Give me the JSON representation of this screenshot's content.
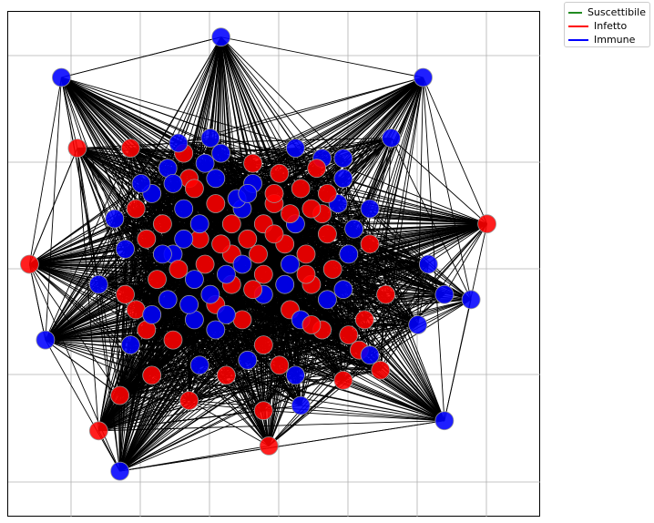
{
  "chart_data": {
    "type": "network",
    "title": "",
    "xlabel": "",
    "ylabel": "",
    "grid": true,
    "legend": {
      "placement": "outside-top-right",
      "entries": [
        {
          "label": "Suscettibile",
          "color": "#228b22"
        },
        {
          "label": "Infetto",
          "color": "#ff0000"
        },
        {
          "label": "Immune",
          "color": "#0000ff"
        }
      ]
    },
    "colors": {
      "edge": "#000000",
      "grid": "#b0b0b0",
      "infected": "#ff0000",
      "immune": "#0000ff"
    },
    "counts": {
      "suscettibile": 0,
      "infetto": 62,
      "immune": 68
    },
    "nodes": [
      {
        "x": 0.4,
        "y": 0.95,
        "state": "Immune"
      },
      {
        "x": 0.78,
        "y": 0.87,
        "state": "Immune"
      },
      {
        "x": 0.1,
        "y": 0.87,
        "state": "Immune"
      },
      {
        "x": 0.72,
        "y": 0.75,
        "state": "Immune"
      },
      {
        "x": 0.13,
        "y": 0.73,
        "state": "Infetto"
      },
      {
        "x": 0.23,
        "y": 0.73,
        "state": "Infetto"
      },
      {
        "x": 0.54,
        "y": 0.73,
        "state": "Immune"
      },
      {
        "x": 0.59,
        "y": 0.71,
        "state": "Immune"
      },
      {
        "x": 0.9,
        "y": 0.58,
        "state": "Infetto"
      },
      {
        "x": 0.04,
        "y": 0.5,
        "state": "Infetto"
      },
      {
        "x": 0.79,
        "y": 0.5,
        "state": "Immune"
      },
      {
        "x": 0.87,
        "y": 0.43,
        "state": "Immune"
      },
      {
        "x": 0.07,
        "y": 0.35,
        "state": "Immune"
      },
      {
        "x": 0.82,
        "y": 0.44,
        "state": "Immune"
      },
      {
        "x": 0.77,
        "y": 0.38,
        "state": "Immune"
      },
      {
        "x": 0.71,
        "y": 0.44,
        "state": "Infetto"
      },
      {
        "x": 0.36,
        "y": 0.3,
        "state": "Immune"
      },
      {
        "x": 0.7,
        "y": 0.29,
        "state": "Infetto"
      },
      {
        "x": 0.17,
        "y": 0.17,
        "state": "Infetto"
      },
      {
        "x": 0.82,
        "y": 0.19,
        "state": "Immune"
      },
      {
        "x": 0.48,
        "y": 0.21,
        "state": "Infetto"
      },
      {
        "x": 0.54,
        "y": 0.28,
        "state": "Immune"
      },
      {
        "x": 0.63,
        "y": 0.27,
        "state": "Infetto"
      },
      {
        "x": 0.34,
        "y": 0.23,
        "state": "Infetto"
      },
      {
        "x": 0.55,
        "y": 0.22,
        "state": "Immune"
      },
      {
        "x": 0.21,
        "y": 0.09,
        "state": "Immune"
      },
      {
        "x": 0.49,
        "y": 0.14,
        "state": "Infetto"
      },
      {
        "x": 0.21,
        "y": 0.24,
        "state": "Infetto"
      },
      {
        "x": 0.41,
        "y": 0.28,
        "state": "Infetto"
      },
      {
        "x": 0.45,
        "y": 0.31,
        "state": "Immune"
      },
      {
        "x": 0.27,
        "y": 0.28,
        "state": "Infetto"
      },
      {
        "x": 0.23,
        "y": 0.34,
        "state": "Immune"
      },
      {
        "x": 0.35,
        "y": 0.39,
        "state": "Immune"
      },
      {
        "x": 0.44,
        "y": 0.39,
        "state": "Infetto"
      },
      {
        "x": 0.53,
        "y": 0.41,
        "state": "Infetto"
      },
      {
        "x": 0.6,
        "y": 0.43,
        "state": "Immune"
      },
      {
        "x": 0.66,
        "y": 0.33,
        "state": "Infetto"
      },
      {
        "x": 0.64,
        "y": 0.36,
        "state": "Infetto"
      },
      {
        "x": 0.59,
        "y": 0.37,
        "state": "Infetto"
      },
      {
        "x": 0.55,
        "y": 0.39,
        "state": "Immune"
      },
      {
        "x": 0.26,
        "y": 0.37,
        "state": "Infetto"
      },
      {
        "x": 0.31,
        "y": 0.35,
        "state": "Infetto"
      },
      {
        "x": 0.39,
        "y": 0.37,
        "state": "Immune"
      },
      {
        "x": 0.48,
        "y": 0.34,
        "state": "Infetto"
      },
      {
        "x": 0.51,
        "y": 0.3,
        "state": "Infetto"
      },
      {
        "x": 0.39,
        "y": 0.42,
        "state": "Infetto"
      },
      {
        "x": 0.3,
        "y": 0.43,
        "state": "Immune"
      },
      {
        "x": 0.24,
        "y": 0.41,
        "state": "Infetto"
      },
      {
        "x": 0.22,
        "y": 0.44,
        "state": "Infetto"
      },
      {
        "x": 0.57,
        "y": 0.46,
        "state": "Infetto"
      },
      {
        "x": 0.63,
        "y": 0.45,
        "state": "Immune"
      },
      {
        "x": 0.67,
        "y": 0.39,
        "state": "Infetto"
      },
      {
        "x": 0.68,
        "y": 0.32,
        "state": "Immune"
      },
      {
        "x": 0.48,
        "y": 0.44,
        "state": "Immune"
      },
      {
        "x": 0.42,
        "y": 0.46,
        "state": "Infetto"
      },
      {
        "x": 0.35,
        "y": 0.47,
        "state": "Immune"
      },
      {
        "x": 0.28,
        "y": 0.47,
        "state": "Infetto"
      },
      {
        "x": 0.17,
        "y": 0.46,
        "state": "Immune"
      },
      {
        "x": 0.22,
        "y": 0.53,
        "state": "Immune"
      },
      {
        "x": 0.26,
        "y": 0.55,
        "state": "Infetto"
      },
      {
        "x": 0.31,
        "y": 0.52,
        "state": "Immune"
      },
      {
        "x": 0.36,
        "y": 0.55,
        "state": "Infetto"
      },
      {
        "x": 0.42,
        "y": 0.52,
        "state": "Infetto"
      },
      {
        "x": 0.47,
        "y": 0.52,
        "state": "Infetto"
      },
      {
        "x": 0.52,
        "y": 0.54,
        "state": "Infetto"
      },
      {
        "x": 0.56,
        "y": 0.52,
        "state": "Infetto"
      },
      {
        "x": 0.6,
        "y": 0.56,
        "state": "Infetto"
      },
      {
        "x": 0.64,
        "y": 0.52,
        "state": "Immune"
      },
      {
        "x": 0.36,
        "y": 0.58,
        "state": "Immune"
      },
      {
        "x": 0.42,
        "y": 0.58,
        "state": "Infetto"
      },
      {
        "x": 0.48,
        "y": 0.58,
        "state": "Infetto"
      },
      {
        "x": 0.54,
        "y": 0.58,
        "state": "Immune"
      },
      {
        "x": 0.59,
        "y": 0.6,
        "state": "Infetto"
      },
      {
        "x": 0.62,
        "y": 0.62,
        "state": "Immune"
      },
      {
        "x": 0.44,
        "y": 0.61,
        "state": "Immune"
      },
      {
        "x": 0.39,
        "y": 0.62,
        "state": "Infetto"
      },
      {
        "x": 0.33,
        "y": 0.61,
        "state": "Immune"
      },
      {
        "x": 0.29,
        "y": 0.58,
        "state": "Infetto"
      },
      {
        "x": 0.27,
        "y": 0.64,
        "state": "Immune"
      },
      {
        "x": 0.24,
        "y": 0.61,
        "state": "Infetto"
      },
      {
        "x": 0.2,
        "y": 0.59,
        "state": "Immune"
      },
      {
        "x": 0.3,
        "y": 0.69,
        "state": "Immune"
      },
      {
        "x": 0.34,
        "y": 0.67,
        "state": "Infetto"
      },
      {
        "x": 0.39,
        "y": 0.67,
        "state": "Immune"
      },
      {
        "x": 0.46,
        "y": 0.66,
        "state": "Immune"
      },
      {
        "x": 0.5,
        "y": 0.62,
        "state": "Infetto"
      },
      {
        "x": 0.55,
        "y": 0.65,
        "state": "Infetto"
      },
      {
        "x": 0.6,
        "y": 0.64,
        "state": "Infetto"
      },
      {
        "x": 0.63,
        "y": 0.67,
        "state": "Immune"
      },
      {
        "x": 0.33,
        "y": 0.72,
        "state": "Infetto"
      },
      {
        "x": 0.4,
        "y": 0.72,
        "state": "Immune"
      },
      {
        "x": 0.46,
        "y": 0.7,
        "state": "Infetto"
      },
      {
        "x": 0.51,
        "y": 0.68,
        "state": "Infetto"
      },
      {
        "x": 0.38,
        "y": 0.75,
        "state": "Immune"
      },
      {
        "x": 0.43,
        "y": 0.63,
        "state": "Immune"
      },
      {
        "x": 0.57,
        "y": 0.61,
        "state": "Infetto"
      },
      {
        "x": 0.32,
        "y": 0.74,
        "state": "Immune"
      },
      {
        "x": 0.35,
        "y": 0.65,
        "state": "Infetto"
      },
      {
        "x": 0.31,
        "y": 0.66,
        "state": "Immune"
      },
      {
        "x": 0.45,
        "y": 0.55,
        "state": "Infetto"
      },
      {
        "x": 0.5,
        "y": 0.56,
        "state": "Infetto"
      },
      {
        "x": 0.53,
        "y": 0.5,
        "state": "Immune"
      },
      {
        "x": 0.48,
        "y": 0.48,
        "state": "Infetto"
      },
      {
        "x": 0.44,
        "y": 0.5,
        "state": "Immune"
      },
      {
        "x": 0.4,
        "y": 0.54,
        "state": "Infetto"
      },
      {
        "x": 0.37,
        "y": 0.5,
        "state": "Infetto"
      },
      {
        "x": 0.33,
        "y": 0.55,
        "state": "Immune"
      },
      {
        "x": 0.41,
        "y": 0.48,
        "state": "Immune"
      },
      {
        "x": 0.56,
        "y": 0.48,
        "state": "Infetto"
      },
      {
        "x": 0.52,
        "y": 0.46,
        "state": "Immune"
      },
      {
        "x": 0.46,
        "y": 0.45,
        "state": "Infetto"
      },
      {
        "x": 0.38,
        "y": 0.44,
        "state": "Immune"
      },
      {
        "x": 0.32,
        "y": 0.49,
        "state": "Infetto"
      },
      {
        "x": 0.29,
        "y": 0.52,
        "state": "Immune"
      },
      {
        "x": 0.5,
        "y": 0.64,
        "state": "Infetto"
      },
      {
        "x": 0.53,
        "y": 0.6,
        "state": "Infetto"
      },
      {
        "x": 0.45,
        "y": 0.64,
        "state": "Immune"
      },
      {
        "x": 0.41,
        "y": 0.4,
        "state": "Immune"
      },
      {
        "x": 0.57,
        "y": 0.38,
        "state": "Infetto"
      },
      {
        "x": 0.61,
        "y": 0.49,
        "state": "Infetto"
      },
      {
        "x": 0.65,
        "y": 0.57,
        "state": "Immune"
      },
      {
        "x": 0.68,
        "y": 0.61,
        "state": "Immune"
      },
      {
        "x": 0.68,
        "y": 0.54,
        "state": "Infetto"
      },
      {
        "x": 0.27,
        "y": 0.4,
        "state": "Immune"
      },
      {
        "x": 0.34,
        "y": 0.42,
        "state": "Immune"
      },
      {
        "x": 0.58,
        "y": 0.69,
        "state": "Infetto"
      },
      {
        "x": 0.63,
        "y": 0.71,
        "state": "Immune"
      },
      {
        "x": 0.37,
        "y": 0.7,
        "state": "Immune"
      },
      {
        "x": 0.25,
        "y": 0.66,
        "state": "Immune"
      }
    ]
  }
}
